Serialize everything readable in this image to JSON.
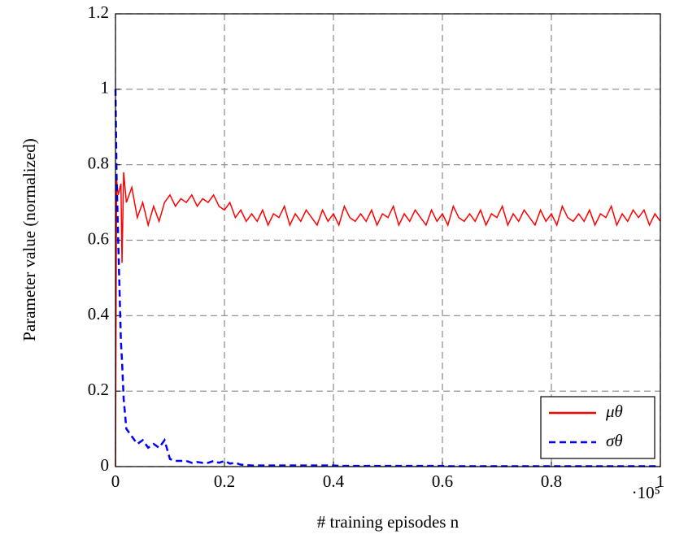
{
  "chart_data": {
    "type": "line",
    "xlabel": "# training episodes n",
    "ylabel": "Parameter value (normalized)",
    "x_multiplier": "·10⁵",
    "x": [
      0,
      0.002,
      0.005,
      0.01,
      0.012,
      0.015,
      0.02,
      0.03,
      0.04,
      0.05,
      0.06,
      0.07,
      0.08,
      0.09,
      0.1,
      0.11,
      0.12,
      0.13,
      0.14,
      0.15,
      0.16,
      0.17,
      0.18,
      0.19,
      0.2,
      0.21,
      0.22,
      0.23,
      0.24,
      0.25,
      0.26,
      0.27,
      0.28,
      0.29,
      0.3,
      0.31,
      0.32,
      0.33,
      0.34,
      0.35,
      0.36,
      0.37,
      0.38,
      0.39,
      0.4,
      0.41,
      0.42,
      0.43,
      0.44,
      0.45,
      0.46,
      0.47,
      0.48,
      0.49,
      0.5,
      0.51,
      0.52,
      0.53,
      0.54,
      0.55,
      0.56,
      0.57,
      0.58,
      0.59,
      0.6,
      0.61,
      0.62,
      0.63,
      0.64,
      0.65,
      0.66,
      0.67,
      0.68,
      0.69,
      0.7,
      0.71,
      0.72,
      0.73,
      0.74,
      0.75,
      0.76,
      0.77,
      0.78,
      0.79,
      0.8,
      0.81,
      0.82,
      0.83,
      0.84,
      0.85,
      0.86,
      0.87,
      0.88,
      0.89,
      0.9,
      0.91,
      0.92,
      0.93,
      0.94,
      0.95,
      0.96,
      0.97,
      0.98,
      0.99,
      1
    ],
    "series": [
      {
        "name": "μθ",
        "color": "#ff0000",
        "dash": false,
        "values": [
          0,
          0.76,
          0.72,
          0.75,
          0.54,
          0.78,
          0.7,
          0.74,
          0.66,
          0.7,
          0.64,
          0.69,
          0.65,
          0.7,
          0.72,
          0.69,
          0.71,
          0.7,
          0.72,
          0.69,
          0.71,
          0.7,
          0.72,
          0.69,
          0.68,
          0.7,
          0.66,
          0.68,
          0.65,
          0.67,
          0.65,
          0.68,
          0.64,
          0.67,
          0.66,
          0.69,
          0.64,
          0.67,
          0.65,
          0.68,
          0.66,
          0.64,
          0.68,
          0.65,
          0.67,
          0.64,
          0.69,
          0.66,
          0.65,
          0.67,
          0.65,
          0.68,
          0.64,
          0.67,
          0.66,
          0.69,
          0.64,
          0.67,
          0.65,
          0.68,
          0.66,
          0.64,
          0.68,
          0.65,
          0.67,
          0.64,
          0.69,
          0.66,
          0.65,
          0.67,
          0.65,
          0.68,
          0.64,
          0.67,
          0.66,
          0.69,
          0.64,
          0.67,
          0.65,
          0.68,
          0.66,
          0.64,
          0.68,
          0.65,
          0.67,
          0.64,
          0.69,
          0.66,
          0.65,
          0.67,
          0.65,
          0.68,
          0.64,
          0.67,
          0.66,
          0.69,
          0.64,
          0.67,
          0.65,
          0.68,
          0.66,
          0.68,
          0.64,
          0.67,
          0.65
        ]
      },
      {
        "name": "σθ",
        "color": "#0000ff",
        "dash": true,
        "values": [
          1.0,
          0.77,
          0.6,
          0.33,
          0.28,
          0.18,
          0.1,
          0.08,
          0.06,
          0.07,
          0.05,
          0.06,
          0.05,
          0.07,
          0.02,
          0.015,
          0.015,
          0.015,
          0.01,
          0.012,
          0.01,
          0.01,
          0.015,
          0.01,
          0.015,
          0.008,
          0.01,
          0.005,
          0.004,
          0.003,
          0.003,
          0.003,
          0.003,
          0.003,
          0.003,
          0.003,
          0.003,
          0.003,
          0.003,
          0.003,
          0.003,
          0.003,
          0.003,
          0.003,
          0.003,
          0.002,
          0.002,
          0.002,
          0.002,
          0.002,
          0.002,
          0.002,
          0.002,
          0.002,
          0.002,
          0.002,
          0.002,
          0.002,
          0.002,
          0.002,
          0.002,
          0.002,
          0.002,
          0.002,
          0.002,
          0.001,
          0.001,
          0.001,
          0.001,
          0.001,
          0.001,
          0.001,
          0.001,
          0.001,
          0.001,
          0.001,
          0.001,
          0.001,
          0.001,
          0.001,
          0.001,
          0.001,
          0.001,
          0.001,
          0.001,
          0.001,
          0.001,
          0.001,
          0.001,
          0.001,
          0.001,
          0.001,
          0.001,
          0.001,
          0.001,
          0.001,
          0.001,
          0.001,
          0.001,
          0.001,
          0.001,
          0.001,
          0.001,
          0.001,
          0.001
        ]
      }
    ],
    "xlim": [
      0,
      1
    ],
    "xticks": [
      0,
      0.2,
      0.4,
      0.6,
      0.8,
      1
    ],
    "ylim": [
      0,
      1.2
    ],
    "yticks": [
      0,
      0.2,
      0.4,
      0.6,
      0.8,
      1,
      1.2
    ],
    "grid": true,
    "legend": "lower right"
  }
}
